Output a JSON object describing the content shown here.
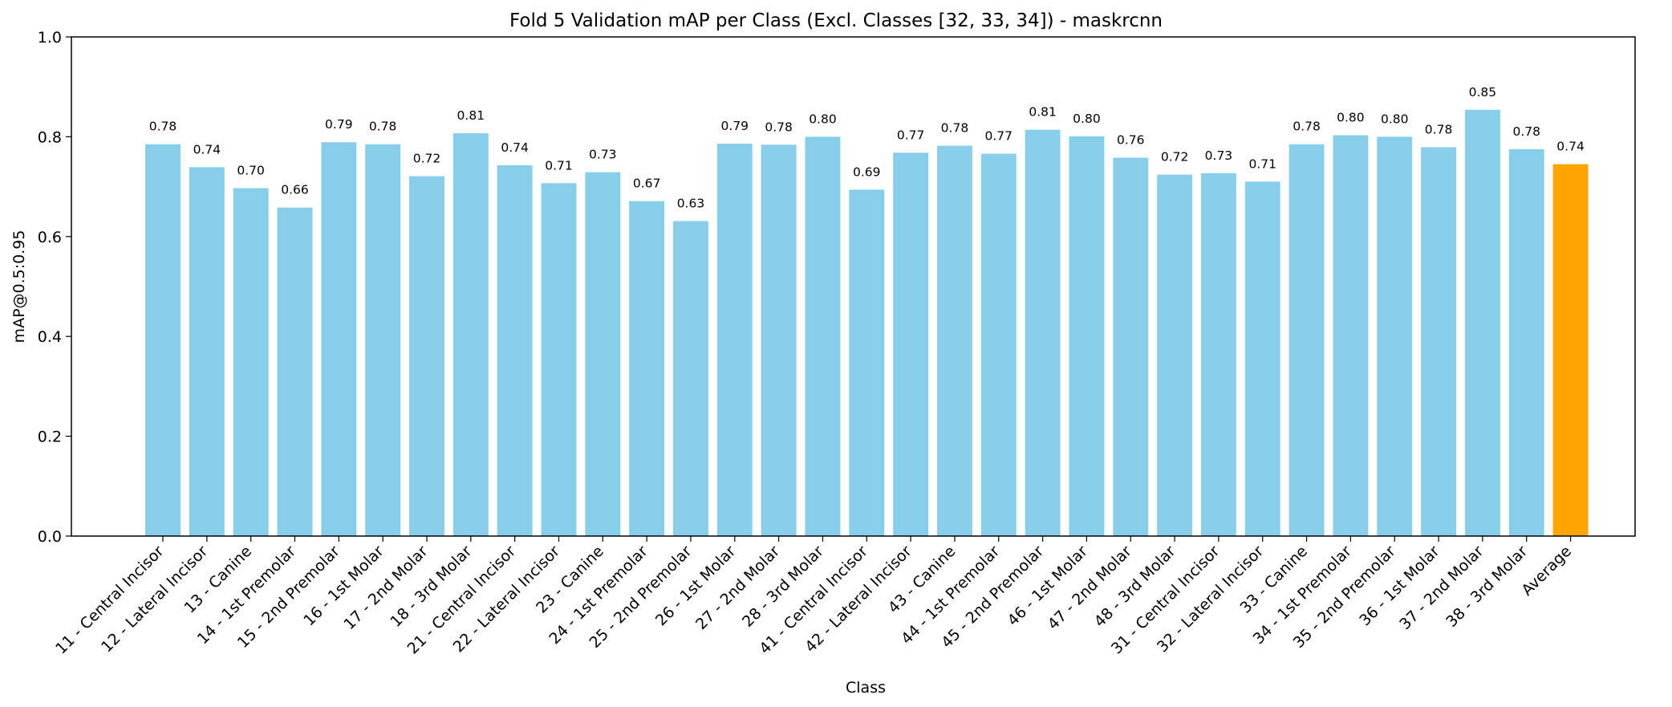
{
  "chart_data": {
    "type": "bar",
    "title": "Fold 5 Validation mAP per Class (Excl. Classes [32, 33, 34]) - maskrcnn",
    "xlabel": "Class",
    "ylabel": "mAP@0.5:0.95",
    "ylim": [
      0,
      1.0
    ],
    "yticks": [
      "0.0",
      "0.2",
      "0.4",
      "0.6",
      "0.8",
      "1.0"
    ],
    "categories": [
      "11 - Central Incisor",
      "12 - Lateral Incisor",
      "13 - Canine",
      "14 - 1st Premolar",
      "15 - 2nd Premolar",
      "16 - 1st Molar",
      "17 - 2nd Molar",
      "18 - 3rd Molar",
      "21 - Central Incisor",
      "22 - Lateral Incisor",
      "23 - Canine",
      "24 - 1st Premolar",
      "25 - 2nd Premolar",
      "26 - 1st Molar",
      "27 - 2nd Molar",
      "28 - 3rd Molar",
      "41 - Central Incisor",
      "42 - Lateral Incisor",
      "43 - Canine",
      "44 - 1st Premolar",
      "45 - 2nd Premolar",
      "46 - 1st Molar",
      "47 - 2nd Molar",
      "48 - 3rd Molar",
      "31 - Central Incisor",
      "32 - Lateral Incisor",
      "33 - Canine",
      "34 - 1st Premolar",
      "35 - 2nd Premolar",
      "36 - 1st Molar",
      "37 - 2nd Molar",
      "38 - 3rd Molar",
      "Average"
    ],
    "values": [
      0.785,
      0.739,
      0.697,
      0.658,
      0.789,
      0.785,
      0.721,
      0.807,
      0.743,
      0.707,
      0.729,
      0.671,
      0.631,
      0.786,
      0.784,
      0.8,
      0.694,
      0.768,
      0.782,
      0.766,
      0.814,
      0.801,
      0.758,
      0.724,
      0.727,
      0.71,
      0.785,
      0.803,
      0.8,
      0.779,
      0.854,
      0.775,
      0.745
    ],
    "value_labels": [
      "0.78",
      "0.74",
      "0.70",
      "0.66",
      "0.79",
      "0.78",
      "0.72",
      "0.81",
      "0.74",
      "0.71",
      "0.73",
      "0.67",
      "0.63",
      "0.79",
      "0.78",
      "0.80",
      "0.69",
      "0.77",
      "0.78",
      "0.77",
      "0.81",
      "0.80",
      "0.76",
      "0.72",
      "0.73",
      "0.71",
      "0.78",
      "0.80",
      "0.80",
      "0.78",
      "0.85",
      "0.78",
      "0.74"
    ],
    "colors": {
      "bar": "#87CEEB",
      "average": "#FFA500"
    },
    "grid": false,
    "legend": "none"
  }
}
